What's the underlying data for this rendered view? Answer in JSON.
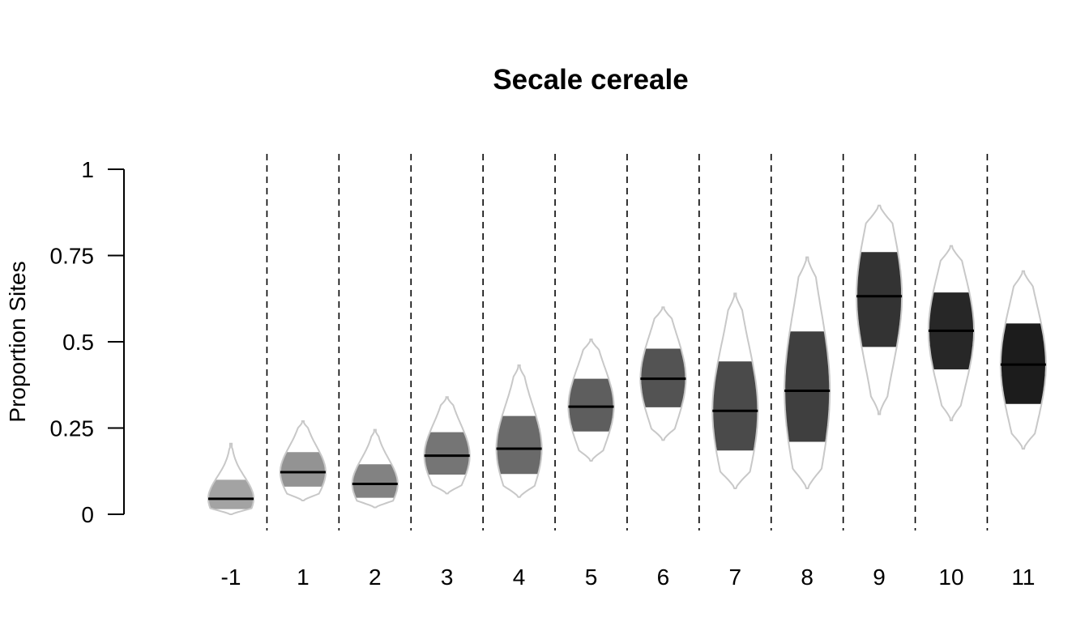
{
  "chart_data": {
    "type": "violin",
    "title": "Secale cereale",
    "xlabel": "",
    "ylabel": "Proportion Sites",
    "ylim": [
      0,
      1
    ],
    "y_ticks": [
      "0",
      "0.25",
      "0.5",
      "0.75",
      "1"
    ],
    "categories": [
      "-1",
      "1",
      "2",
      "3",
      "4",
      "5",
      "6",
      "7",
      "8",
      "9",
      "10",
      "11"
    ],
    "series": [
      {
        "median": [
          0.045,
          0.122,
          0.088,
          0.17,
          0.19,
          0.312,
          0.393,
          0.3,
          0.358,
          0.632,
          0.532,
          0.434
        ],
        "q_low": [
          0.015,
          0.08,
          0.048,
          0.115,
          0.117,
          0.24,
          0.31,
          0.185,
          0.21,
          0.485,
          0.42,
          0.32
        ],
        "q_high": [
          0.1,
          0.18,
          0.145,
          0.238,
          0.285,
          0.393,
          0.48,
          0.443,
          0.53,
          0.76,
          0.643,
          0.553
        ],
        "min": [
          0.0,
          0.04,
          0.02,
          0.06,
          0.05,
          0.155,
          0.215,
          0.075,
          0.075,
          0.29,
          0.272,
          0.19
        ],
        "max": [
          0.205,
          0.27,
          0.245,
          0.34,
          0.432,
          0.507,
          0.6,
          0.64,
          0.745,
          0.895,
          0.778,
          0.705
        ]
      }
    ],
    "colors": [
      "#a3a3a3",
      "#939393",
      "#828282",
      "#757575",
      "#6a6a6a",
      "#5e5e5e",
      "#535353",
      "#4a4a4a",
      "#3f3f3f",
      "#333333",
      "#272727",
      "#1c1c1c"
    ],
    "outline_color": "#c8c8c8",
    "median_color": "#000000",
    "separator_style": "dashed",
    "grid": false,
    "legend": "none"
  }
}
